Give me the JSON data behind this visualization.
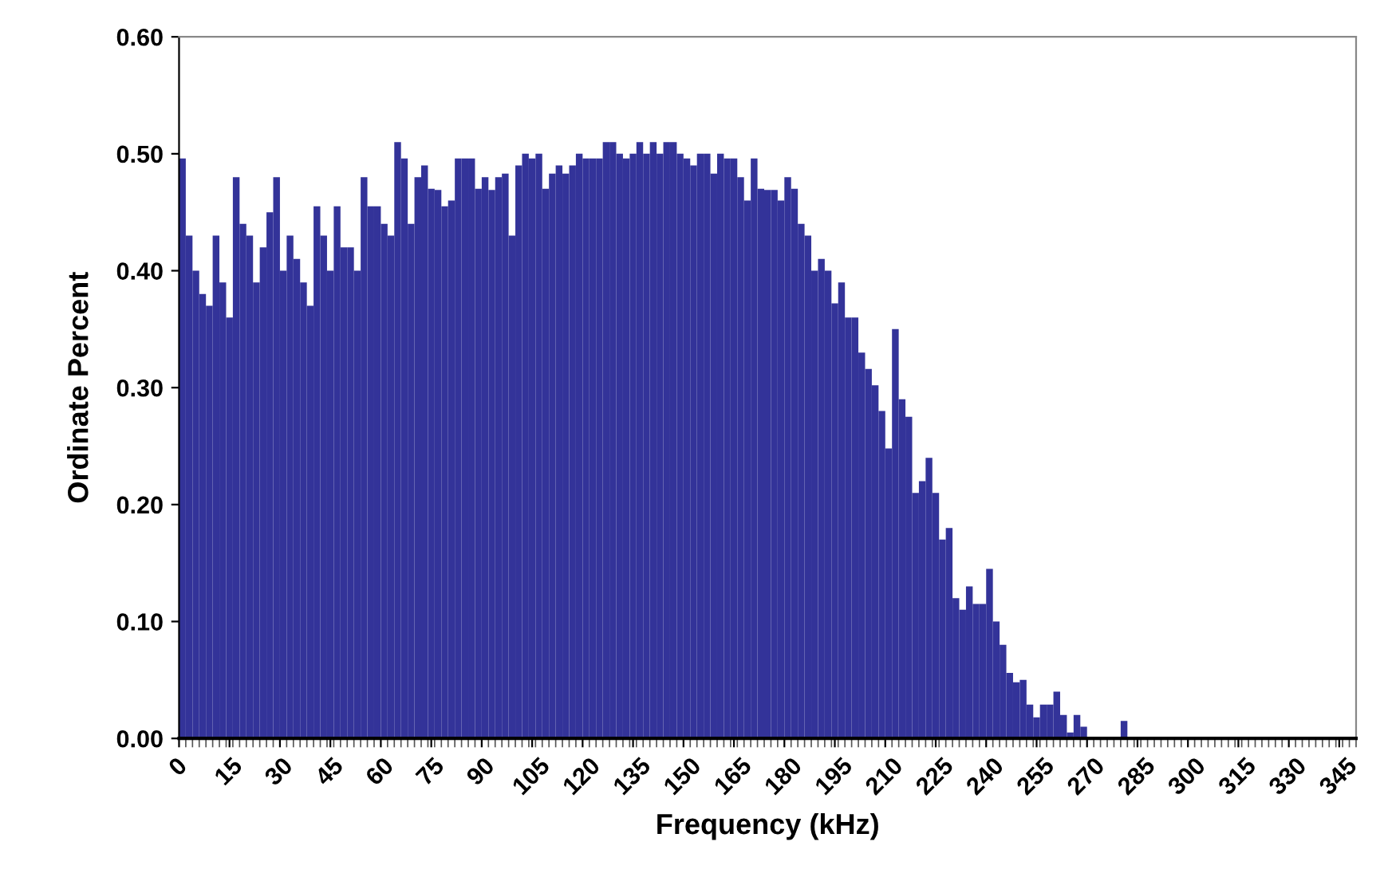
{
  "chart_data": {
    "type": "histogram",
    "xlabel": "Frequency (kHz)",
    "ylabel": "Ordinate Percent",
    "color": "#333399",
    "bins": [
      0,
      2,
      4,
      6,
      8,
      10,
      12,
      14,
      16,
      18,
      20,
      22,
      24,
      26,
      28,
      30,
      32,
      34,
      36,
      38,
      40,
      42,
      44,
      46,
      48,
      50,
      52,
      54,
      56,
      58,
      60,
      62,
      64,
      66,
      68,
      70,
      72,
      74,
      76,
      78,
      80,
      82,
      84,
      86,
      88,
      90,
      92,
      94,
      96,
      98,
      100,
      102,
      104,
      106,
      108,
      110,
      112,
      114,
      116,
      118,
      120,
      122,
      124,
      126,
      128,
      130,
      132,
      134,
      136,
      138,
      140,
      142,
      144,
      146,
      148,
      150,
      152,
      154,
      156,
      158,
      160,
      162,
      164,
      166,
      168,
      170,
      172,
      174,
      176,
      178,
      180,
      182,
      184,
      186,
      188,
      190,
      192,
      194,
      196,
      198,
      200,
      202,
      204,
      206,
      208,
      210,
      212,
      214,
      216,
      218,
      220,
      222,
      224,
      226,
      228,
      230,
      232,
      234,
      236,
      238,
      240,
      242,
      244,
      246,
      248,
      250,
      252,
      254,
      256,
      258,
      260,
      262,
      264,
      266,
      268,
      270,
      272,
      274,
      276,
      278,
      280,
      282,
      284,
      286,
      288,
      290,
      292,
      294,
      296,
      298,
      300,
      302,
      304,
      306,
      308,
      310,
      312,
      314,
      316,
      318,
      320,
      322,
      324,
      326,
      328,
      330,
      332,
      334,
      336,
      338,
      340,
      342,
      344,
      346,
      348,
      350
    ],
    "values": [
      0.496,
      0.43,
      0.4,
      0.38,
      0.37,
      0.43,
      0.39,
      0.36,
      0.48,
      0.44,
      0.43,
      0.39,
      0.42,
      0.45,
      0.48,
      0.4,
      0.43,
      0.41,
      0.39,
      0.37,
      0.455,
      0.43,
      0.4,
      0.455,
      0.42,
      0.42,
      0.4,
      0.48,
      0.455,
      0.455,
      0.44,
      0.43,
      0.51,
      0.496,
      0.44,
      0.48,
      0.49,
      0.47,
      0.469,
      0.455,
      0.46,
      0.496,
      0.496,
      0.496,
      0.47,
      0.48,
      0.469,
      0.48,
      0.483,
      0.43,
      0.49,
      0.5,
      0.496,
      0.5,
      0.47,
      0.483,
      0.49,
      0.483,
      0.49,
      0.5,
      0.496,
      0.496,
      0.496,
      0.51,
      0.51,
      0.5,
      0.496,
      0.5,
      0.51,
      0.5,
      0.51,
      0.5,
      0.51,
      0.51,
      0.5,
      0.496,
      0.49,
      0.5,
      0.5,
      0.483,
      0.5,
      0.496,
      0.496,
      0.48,
      0.46,
      0.496,
      0.47,
      0.469,
      0.469,
      0.46,
      0.48,
      0.47,
      0.44,
      0.43,
      0.4,
      0.41,
      0.4,
      0.372,
      0.39,
      0.36,
      0.36,
      0.33,
      0.316,
      0.302,
      0.28,
      0.248,
      0.35,
      0.29,
      0.275,
      0.21,
      0.22,
      0.24,
      0.21,
      0.17,
      0.18,
      0.12,
      0.11,
      0.13,
      0.115,
      0.115,
      0.145,
      0.1,
      0.08,
      0.056,
      0.048,
      0.05,
      0.029,
      0.018,
      0.029,
      0.029,
      0.04,
      0.02,
      0.005,
      0.02,
      0.01,
      0,
      0,
      0,
      0,
      0,
      0.015,
      0,
      0,
      0,
      0,
      0,
      0,
      0,
      0,
      0,
      0,
      0,
      0,
      0,
      0,
      0,
      0,
      0,
      0,
      0,
      0,
      0,
      0,
      0,
      0,
      0,
      0,
      0,
      0,
      0,
      0,
      0,
      0,
      0,
      0
    ],
    "xlim": [
      0,
      350
    ],
    "xticks": [
      0,
      15,
      30,
      45,
      60,
      75,
      90,
      105,
      120,
      135,
      150,
      165,
      180,
      195,
      210,
      225,
      240,
      255,
      270,
      285,
      300,
      315,
      330,
      345
    ],
    "ylim": [
      0,
      0.6
    ],
    "yticks": [
      {
        "value": 0,
        "label": "0.00"
      },
      {
        "value": 0.1,
        "label": "0.10"
      },
      {
        "value": 0.2,
        "label": "0.20"
      },
      {
        "value": 0.3,
        "label": "0.30"
      },
      {
        "value": 0.4,
        "label": "0.40"
      },
      {
        "value": 0.5,
        "label": "0.50"
      },
      {
        "value": 0.6,
        "label": "0.60"
      }
    ],
    "grid": false,
    "legend": false
  }
}
